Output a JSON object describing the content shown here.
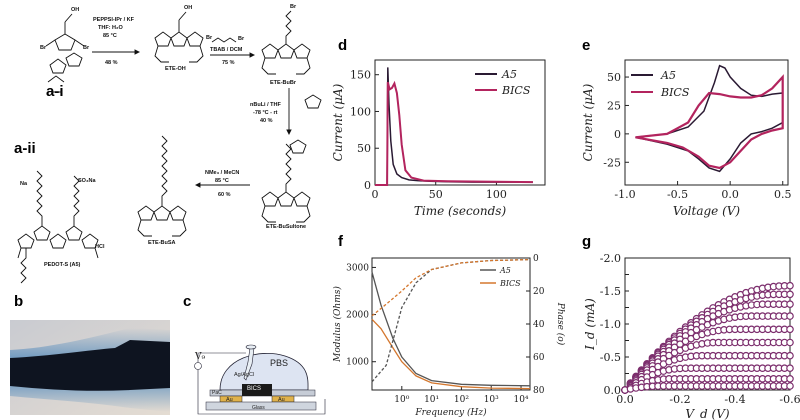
{
  "panels": {
    "a_i": "a-i",
    "a_ii": "a-ii",
    "b": "b",
    "c": "c",
    "d": "d",
    "e": "e",
    "f": "f",
    "g": "g"
  },
  "synthesis": {
    "step1": [
      "PEPPSI-IPr / KF",
      "THF: H₂O",
      "85 °C",
      "48 %"
    ],
    "step2": [
      "TBAB / DCM",
      "75 %"
    ],
    "step3": [
      "nBuLi / THF",
      "-78 °C - rt",
      "40 %"
    ],
    "step4": [
      "NMe₃ / MeCN",
      "85 °C",
      "60 %"
    ],
    "compounds": {
      "ete_oh": "ETE-OH",
      "ete_bubr": "ETE-BuBr",
      "ete_busultone": "ETE-BuSultone",
      "ete_busa": "ETE-BuSA",
      "pedot": "PEDOT-S (A5)"
    },
    "labels": {
      "br": "Br",
      "oh": "OH",
      "hcl": "HCl",
      "na": "Na",
      "so3na": "SO₃Na"
    }
  },
  "device": {
    "pbs": "PBS",
    "electrode": "Ag/AgCl",
    "bics": "BICS",
    "au": "Au",
    "pac": "PaC",
    "glass": "Glass",
    "vg": "V₉"
  },
  "colors": {
    "a5": "#2a1a33",
    "bics": "#b3245e",
    "a5_f": "#555555",
    "bics_f": "#d4772e",
    "g_marker": "#7c2e6d"
  },
  "chart_data": [
    {
      "id": "d",
      "type": "line",
      "xlabel": "Time (seconds)",
      "ylabel": "Current (μA)",
      "xlim": [
        0,
        140
      ],
      "ylim": [
        0,
        170
      ],
      "xticks": [
        0,
        50,
        100
      ],
      "yticks": [
        0,
        50,
        100,
        150
      ],
      "legend": "top-right",
      "series": [
        {
          "name": "A5",
          "x": [
            0,
            10,
            10.5,
            11.5,
            13,
            15,
            18,
            22,
            28,
            35,
            45,
            60,
            80,
            130
          ],
          "y": [
            0,
            0,
            160,
            110,
            60,
            28,
            15,
            10,
            7,
            6,
            5,
            4.5,
            4,
            4
          ]
        },
        {
          "name": "BICS",
          "x": [
            0,
            10,
            10.5,
            12,
            14,
            16,
            18,
            20,
            22,
            25,
            30,
            40,
            60,
            130
          ],
          "y": [
            0,
            0,
            140,
            130,
            132,
            138,
            125,
            95,
            55,
            20,
            10,
            6,
            5,
            4
          ]
        }
      ]
    },
    {
      "id": "e",
      "type": "line",
      "xlabel": "Voltage (V)",
      "ylabel": "Current (μA)",
      "xlim": [
        -1.0,
        0.55
      ],
      "ylim": [
        -45,
        65
      ],
      "xticks": [
        -1.0,
        -0.5,
        0.0,
        0.5
      ],
      "yticks": [
        -25,
        0,
        25,
        50
      ],
      "legend": "top-left",
      "series": [
        {
          "name": "A5",
          "x": [
            -0.9,
            -0.6,
            -0.4,
            -0.25,
            -0.15,
            -0.1,
            -0.05,
            0.0,
            0.1,
            0.2,
            0.3,
            0.4,
            0.5,
            0.5,
            0.4,
            0.3,
            0.2,
            0.1,
            0.0,
            -0.1,
            -0.2,
            -0.3,
            -0.4,
            -0.6,
            -0.9
          ],
          "y": [
            -3,
            0,
            6,
            20,
            45,
            60,
            58,
            50,
            40,
            34,
            33,
            35,
            36,
            10,
            5,
            2,
            0,
            -8,
            -22,
            -33,
            -30,
            -22,
            -15,
            -9,
            -3
          ]
        },
        {
          "name": "BICS",
          "x": [
            -0.9,
            -0.6,
            -0.4,
            -0.3,
            -0.2,
            -0.1,
            0.0,
            0.1,
            0.2,
            0.3,
            0.4,
            0.5,
            0.5,
            0.4,
            0.3,
            0.2,
            0.1,
            0.0,
            -0.1,
            -0.2,
            -0.3,
            -0.45,
            -0.6,
            -0.9
          ],
          "y": [
            -3,
            0,
            10,
            25,
            36,
            35,
            33,
            32,
            32,
            34,
            40,
            50,
            5,
            3,
            0,
            -5,
            -15,
            -25,
            -30,
            -28,
            -20,
            -12,
            -8,
            -3
          ]
        }
      ]
    },
    {
      "id": "f",
      "type": "line",
      "xlabel": "Frequency (Hz)",
      "ylabel": "Modulus (Ohms)",
      "y2label": "Phase (o)",
      "xscale": "log",
      "xlim": [
        0.1,
        20000
      ],
      "ylim": [
        400,
        3200
      ],
      "y2lim": [
        80,
        0
      ],
      "xticks": [
        1,
        10,
        100,
        1000,
        10000
      ],
      "yticks": [
        1000,
        2000,
        3000
      ],
      "y2ticks": [
        0,
        20,
        40,
        60,
        80
      ],
      "legend": "top-right",
      "series": [
        {
          "name": "A5",
          "axis": "modulus",
          "x": [
            0.1,
            0.2,
            0.5,
            1,
            3,
            10,
            100,
            1000,
            20000
          ],
          "y": [
            2900,
            2200,
            1500,
            1100,
            750,
            600,
            520,
            500,
            490
          ]
        },
        {
          "name": "BICS",
          "axis": "modulus",
          "x": [
            0.1,
            0.2,
            0.5,
            1,
            3,
            10,
            100,
            1000,
            20000
          ],
          "y": [
            1900,
            1700,
            1300,
            1000,
            700,
            550,
            470,
            440,
            430
          ]
        },
        {
          "name": "A5",
          "axis": "phase",
          "x": [
            0.1,
            0.3,
            0.6,
            1,
            3,
            10,
            100,
            1000,
            20000
          ],
          "y": [
            75,
            65,
            45,
            30,
            15,
            7,
            3,
            1.5,
            1
          ]
        },
        {
          "name": "BICS",
          "axis": "phase",
          "x": [
            0.1,
            0.3,
            1,
            3,
            10,
            100,
            1000,
            20000
          ],
          "y": [
            35,
            28,
            20,
            12,
            7,
            3,
            1.5,
            1
          ]
        }
      ]
    },
    {
      "id": "g",
      "type": "scatter",
      "xlabel": "V_d (V)",
      "ylabel": "I_d (mA)",
      "xlim": [
        0.0,
        -0.6
      ],
      "ylim": [
        0.0,
        -2.0
      ],
      "xticks": [
        0.0,
        -0.2,
        -0.4,
        -0.6
      ],
      "yticks": [
        0.0,
        -0.25,
        -0.5,
        -0.75,
        -1.0,
        -1.25,
        -1.5,
        -1.75,
        -2.0
      ],
      "ytick_labels": [
        "0.0",
        "0.25",
        "0.5",
        "0.75",
        "1.0",
        "1.25",
        "1.5",
        "1.75",
        "2.0"
      ],
      "saturation_currents": [
        -1.58,
        -1.45,
        -1.3,
        -1.12,
        -0.92,
        -0.72,
        -0.52,
        -0.33,
        -0.17,
        -0.06
      ]
    }
  ]
}
